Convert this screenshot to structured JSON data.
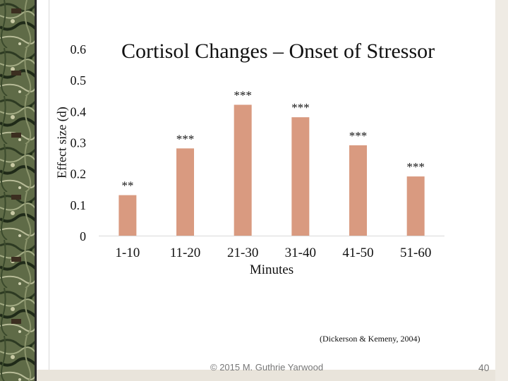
{
  "chart_data": {
    "type": "bar",
    "title": "Cortisol Changes – Onset of Stressor",
    "xlabel": "Minutes",
    "ylabel": "Effect size (d)",
    "categories": [
      "1-10",
      "11-20",
      "21-30",
      "31-40",
      "41-50",
      "51-60"
    ],
    "values": [
      0.13,
      0.28,
      0.42,
      0.38,
      0.29,
      0.19
    ],
    "annotations": [
      "**",
      "***",
      "***",
      "***",
      "***",
      "***"
    ],
    "yticks": [
      "0",
      "0.1",
      "0.2",
      "0.3",
      "0.4",
      "0.5",
      "0.6"
    ],
    "ylim": [
      0,
      0.6
    ],
    "bar_color": "#d99a80",
    "grid": false
  },
  "citation": "(Dickerson & Kemeny, 2004)",
  "footer": "© 2015 M. Guthrie Yarwood",
  "page_number": "40"
}
